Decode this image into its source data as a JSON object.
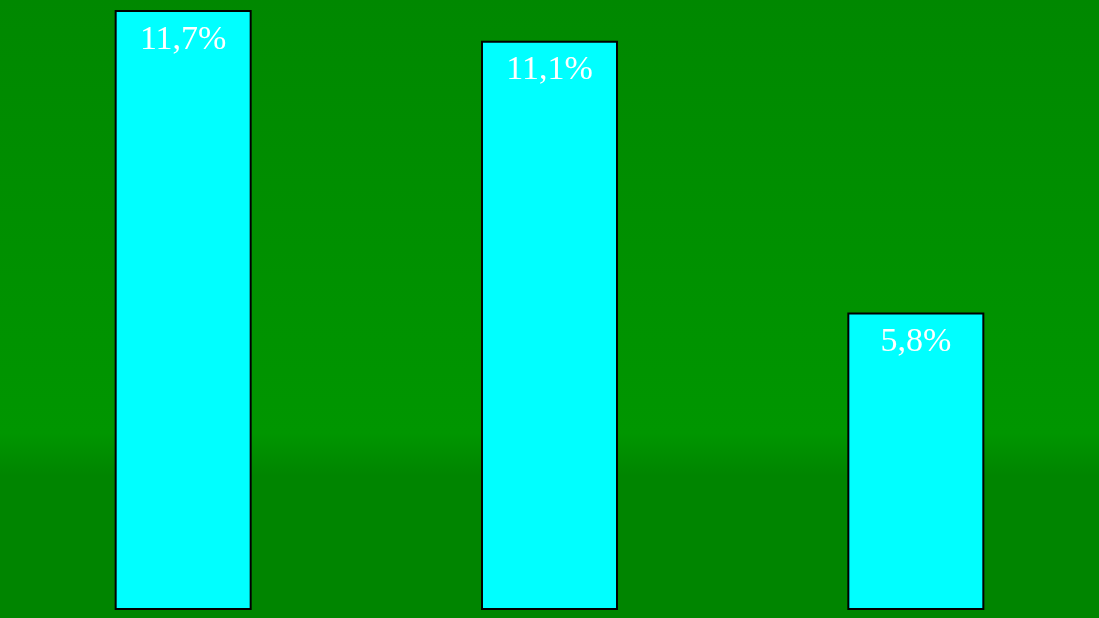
{
  "chart_data": {
    "type": "bar",
    "categories": [
      null,
      null,
      null
    ],
    "values": [
      11.7,
      11.1,
      5.8
    ],
    "value_labels": [
      "11,7%",
      "11,1%",
      "5,8%"
    ],
    "color": "#00ffff"
  }
}
